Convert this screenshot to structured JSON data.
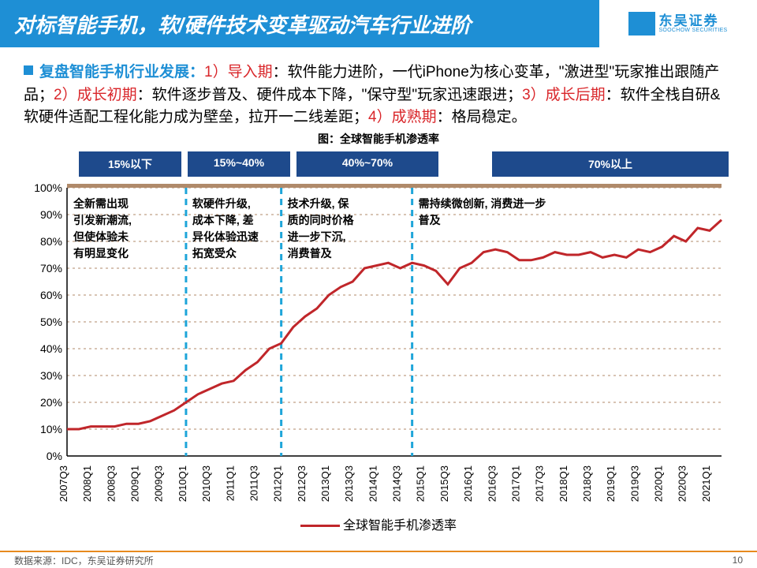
{
  "header": {
    "title": "对标智能手机，软/硬件技术变革驱动汽车行业进阶"
  },
  "logo": {
    "cn": "东吴证券",
    "en": "SOOCHOW SECURITIES"
  },
  "paragraph": {
    "lead": "复盘智能手机行业发展：",
    "p1a": "1）导入期",
    "p1b": "：软件能力进阶，一代iPhone为核心变革，\"激进型\"玩家推出跟随产品；",
    "p2a": "2）成长初期",
    "p2b": "：软件逐步普及、硬件成本下降，\"保守型\"玩家迅速跟进；",
    "p3a": "3）成长后期",
    "p3b": "：软件全栈自研&软硬件适配工程化能力成为壁垒，拉开一二线差距；",
    "p4a": "4）成熟期",
    "p4b": "：格局稳定。"
  },
  "chart_title": "图：全球智能手机渗透率",
  "badges": {
    "b1": "15%以下",
    "b2": "15%~40%",
    "b3": "40%~70%",
    "b4": "70%以上",
    "w1": 130,
    "w2": 130,
    "w3": 180,
    "w4": 300,
    "gap4": 60
  },
  "annotations": {
    "a1": "全新需出现\n引发新潮流,\n但使体验未\n有明显变化",
    "a2": "软硬件升级,\n成本下降, 差\n异化体验迅速\n拓宽受众",
    "a3": "技术升级, 保\n质的同时价格\n进一步下沉,\n消费普及",
    "a4": "需持续微创新, 消费进一步\n普及"
  },
  "chart": {
    "type": "line",
    "line_color": "#c0262a",
    "line_width": 3,
    "dash_color": "#1ea5d9",
    "grid_color": "#b08a6a",
    "axis_color": "#000",
    "bg_color": "#ffffff",
    "ylim": [
      0,
      100
    ],
    "ytick_step": 10,
    "yticks": [
      "0%",
      "10%",
      "20%",
      "30%",
      "40%",
      "50%",
      "60%",
      "70%",
      "80%",
      "90%",
      "100%"
    ],
    "xlabels": [
      "2007Q3",
      "2008Q1",
      "2008Q3",
      "2009Q1",
      "2009Q3",
      "2010Q1",
      "2010Q3",
      "2011Q1",
      "2011Q3",
      "2012Q1",
      "2012Q3",
      "2013Q1",
      "2013Q3",
      "2014Q1",
      "2014Q3",
      "2015Q1",
      "2015Q3",
      "2016Q1",
      "2016Q3",
      "2017Q1",
      "2017Q3",
      "2018Q1",
      "2018Q3",
      "2019Q1",
      "2019Q3",
      "2020Q1",
      "2020Q3",
      "2021Q1"
    ],
    "values": [
      10,
      10,
      11,
      11,
      11,
      12,
      12,
      13,
      15,
      17,
      20,
      23,
      25,
      27,
      28,
      32,
      35,
      40,
      42,
      48,
      52,
      55,
      60,
      63,
      65,
      70,
      71,
      72,
      70,
      72,
      71,
      69,
      64,
      70,
      72,
      76,
      77,
      76,
      73,
      73,
      74,
      76,
      75,
      75,
      76,
      74,
      75,
      74,
      77,
      76,
      78,
      82,
      80,
      85,
      84,
      88
    ],
    "dash_x_indices": [
      5,
      9,
      14.5
    ],
    "legend_label": "全球智能手机渗透率",
    "tick_fontsize": 14,
    "xlabel_fontsize": 13
  },
  "footer": {
    "source": "数据来源：IDC，东吴证券研究所",
    "page": "10"
  }
}
